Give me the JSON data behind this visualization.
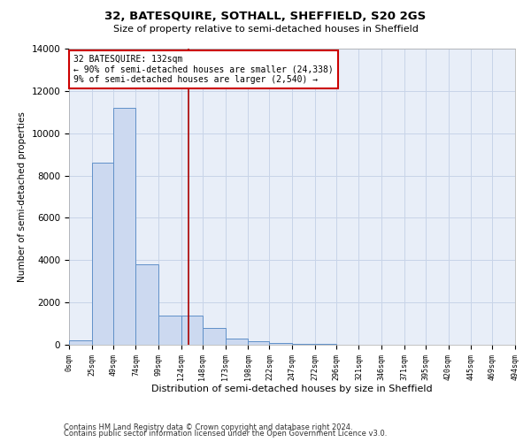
{
  "title1": "32, BATESQUIRE, SOTHALL, SHEFFIELD, S20 2GS",
  "title2": "Size of property relative to semi-detached houses in Sheffield",
  "xlabel": "Distribution of semi-detached houses by size in Sheffield",
  "ylabel": "Number of semi-detached properties",
  "footer1": "Contains HM Land Registry data © Crown copyright and database right 2024.",
  "footer2": "Contains public sector information licensed under the Open Government Licence v3.0.",
  "annotation_line1": "32 BATESQUIRE: 132sqm",
  "annotation_line2": "← 90% of semi-detached houses are smaller (24,338)",
  "annotation_line3": "9% of semi-detached houses are larger (2,540) →",
  "property_size": 132,
  "bar_left_edges": [
    0,
    25,
    49,
    74,
    99,
    124,
    148,
    173,
    198,
    222,
    247,
    272,
    296,
    321,
    346,
    371,
    395,
    420,
    445,
    469
  ],
  "bar_widths": [
    25,
    24,
    25,
    25,
    25,
    24,
    25,
    25,
    24,
    25,
    25,
    24,
    25,
    25,
    25,
    24,
    25,
    25,
    24,
    25
  ],
  "bar_heights": [
    200,
    8600,
    11200,
    3800,
    1400,
    1400,
    800,
    300,
    150,
    80,
    40,
    30,
    15,
    10,
    5,
    5,
    3,
    2,
    1,
    1
  ],
  "bar_color": "#ccd9f0",
  "bar_edge_color": "#6090c8",
  "vline_color": "#aa0000",
  "vline_x": 132,
  "annotation_box_color": "#cc0000",
  "grid_color": "#c8d4e8",
  "bg_color": "#e8eef8",
  "ylim": [
    0,
    14000
  ],
  "yticks": [
    0,
    2000,
    4000,
    6000,
    8000,
    10000,
    12000,
    14000
  ],
  "xlim": [
    0,
    494
  ],
  "xtick_labels": [
    "0sqm",
    "25sqm",
    "49sqm",
    "74sqm",
    "99sqm",
    "124sqm",
    "148sqm",
    "173sqm",
    "198sqm",
    "222sqm",
    "247sqm",
    "272sqm",
    "296sqm",
    "321sqm",
    "346sqm",
    "371sqm",
    "395sqm",
    "420sqm",
    "445sqm",
    "469sqm",
    "494sqm"
  ],
  "xtick_positions": [
    0,
    25,
    49,
    74,
    99,
    124,
    148,
    173,
    198,
    222,
    247,
    272,
    296,
    321,
    346,
    371,
    395,
    420,
    445,
    469,
    494
  ],
  "title1_fontsize": 9.5,
  "title2_fontsize": 8,
  "ylabel_fontsize": 7.5,
  "xlabel_fontsize": 8,
  "ytick_fontsize": 7.5,
  "xtick_fontsize": 6,
  "annotation_fontsize": 7,
  "footer_fontsize": 6
}
